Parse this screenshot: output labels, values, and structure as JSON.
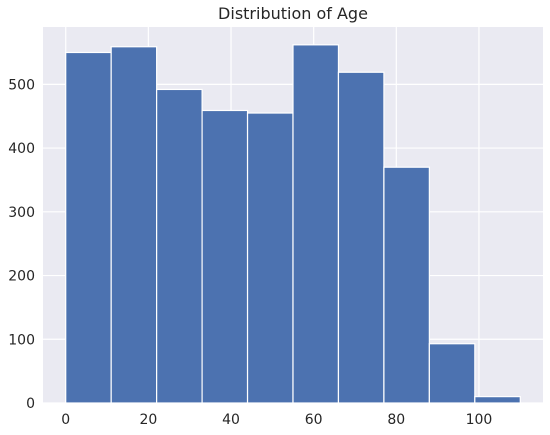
{
  "chart_data": {
    "type": "bar",
    "title": "Distribution of Age",
    "xlabel": "",
    "ylabel": "",
    "bin_edges": [
      0,
      11,
      22,
      33,
      44,
      55,
      66,
      77,
      88,
      99,
      110
    ],
    "values": [
      550,
      559,
      492,
      459,
      455,
      562,
      519,
      370,
      93,
      10
    ],
    "xlim": [
      -5.5,
      115.5
    ],
    "ylim": [
      0,
      590
    ],
    "x_ticks": [
      0,
      20,
      40,
      60,
      80,
      100
    ],
    "y_ticks": [
      0,
      100,
      200,
      300,
      400,
      500
    ],
    "grid": true,
    "legend": "none",
    "colors": {
      "bar": "#4c72b0",
      "bar_edge": "#ffffff",
      "plot_background": "#eaeaf2",
      "grid": "#ffffff",
      "text": "#262626"
    }
  }
}
